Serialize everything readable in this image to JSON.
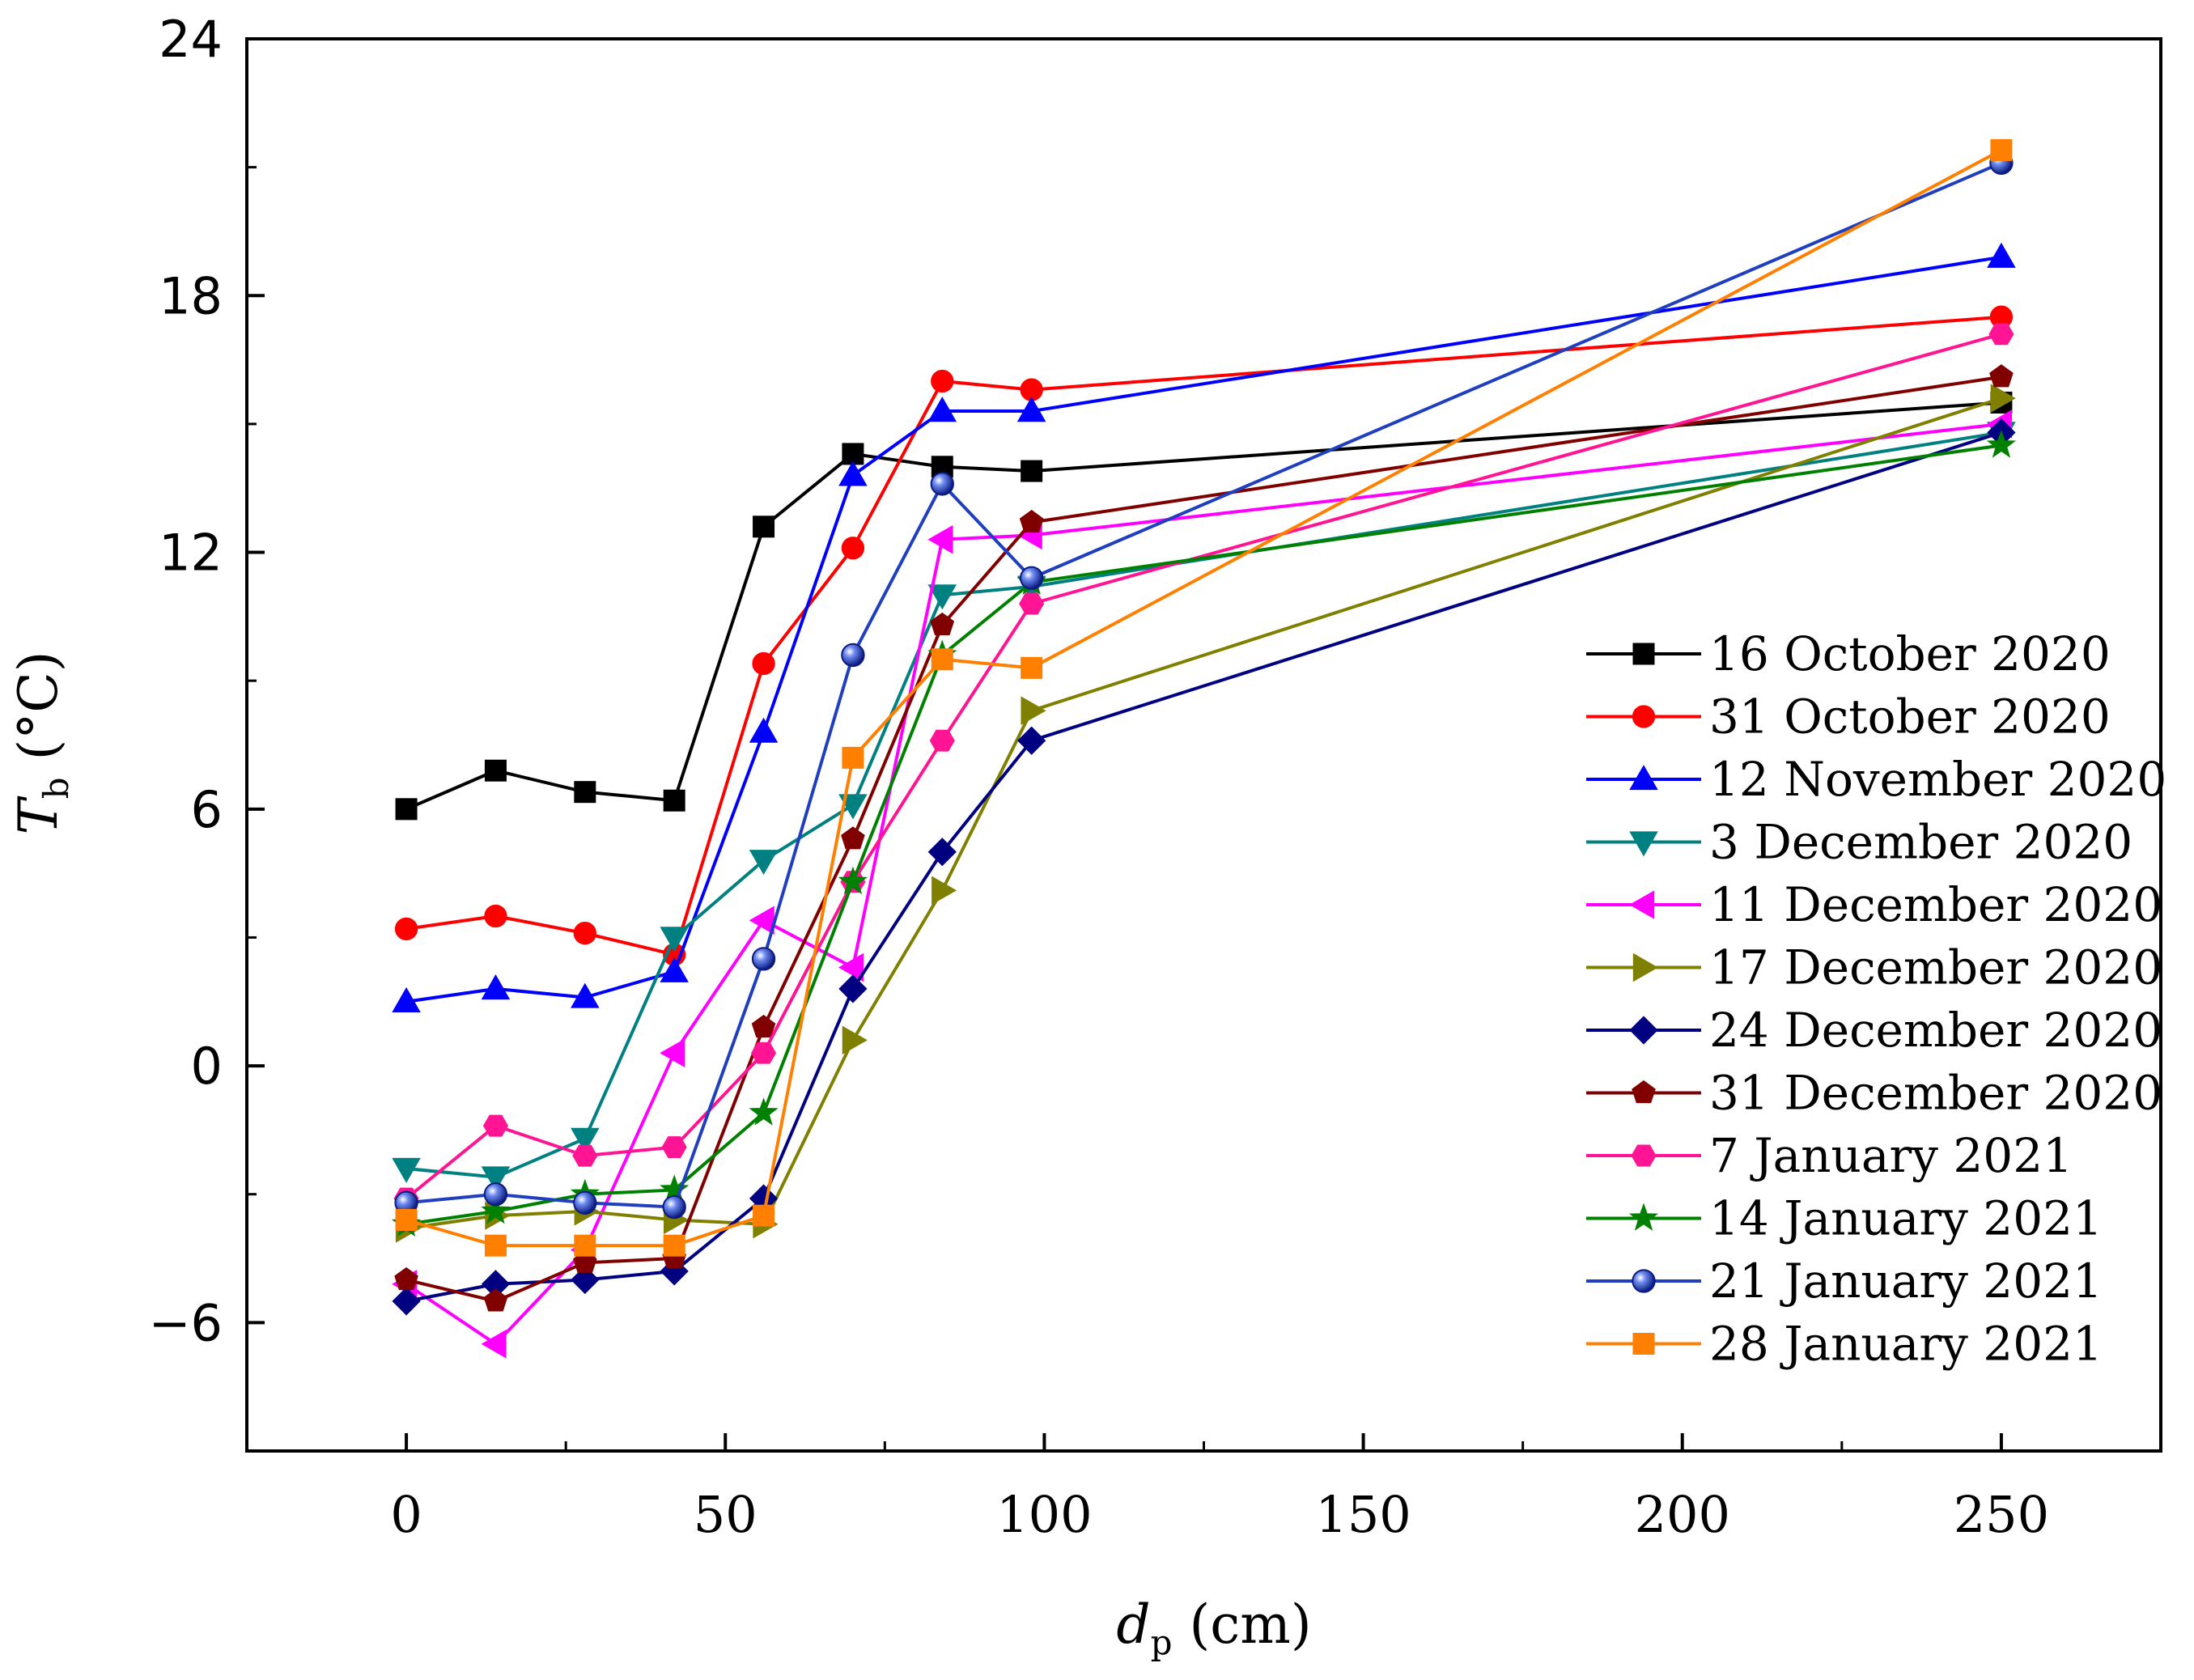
{
  "chart_data": {
    "type": "line",
    "title": "",
    "xlabel": {
      "main": "d",
      "sub": "p",
      "unit": " (cm)"
    },
    "ylabel": {
      "main": "T",
      "sub": "b",
      "unit": " (°C)"
    },
    "xlim": [
      -25,
      275
    ],
    "ylim": [
      -9,
      24
    ],
    "x_ticks": [
      0,
      50,
      100,
      150,
      200,
      250
    ],
    "y_ticks": [
      -6,
      0,
      6,
      12,
      18,
      24
    ],
    "y_tick_labels": [
      "−6",
      "0",
      "6",
      "12",
      "18",
      "24"
    ],
    "x_minor_step": 25,
    "y_minor_step": 3,
    "x": [
      0,
      14,
      28,
      42,
      56,
      70,
      84,
      98,
      250
    ],
    "legend_position": "center-right",
    "series": [
      {
        "name": "16 October 2020",
        "color": "#000000",
        "marker": "square",
        "values": [
          6.0,
          6.9,
          6.4,
          6.2,
          12.6,
          14.3,
          14.0,
          13.9,
          15.5
        ]
      },
      {
        "name": "31 October 2020",
        "color": "#ff0000",
        "marker": "circle",
        "values": [
          3.2,
          3.5,
          3.1,
          2.6,
          9.4,
          12.1,
          16.0,
          15.8,
          17.5
        ]
      },
      {
        "name": "12 November 2020",
        "color": "#0000ff",
        "marker": "triangle-up",
        "values": [
          1.5,
          1.8,
          1.6,
          2.2,
          7.8,
          13.8,
          15.3,
          15.3,
          18.9
        ]
      },
      {
        "name": "3 December 2020",
        "color": "#008080",
        "marker": "triangle-down",
        "values": [
          -2.4,
          -2.6,
          -1.7,
          3.0,
          4.8,
          6.1,
          11.0,
          11.2,
          14.8
        ]
      },
      {
        "name": "11 December 2020",
        "color": "#ff00ff",
        "marker": "triangle-left",
        "values": [
          -5.1,
          -6.5,
          -4.3,
          0.3,
          3.4,
          2.3,
          12.3,
          12.4,
          15.0
        ]
      },
      {
        "name": "17 December 2020",
        "color": "#808000",
        "marker": "triangle-right",
        "values": [
          -3.8,
          -3.5,
          -3.4,
          -3.6,
          -3.7,
          0.6,
          4.1,
          8.3,
          15.6
        ]
      },
      {
        "name": "24 December 2020",
        "color": "#000080",
        "marker": "diamond",
        "values": [
          -5.5,
          -5.1,
          -5.0,
          -4.8,
          -3.1,
          1.8,
          5.0,
          7.6,
          14.8
        ]
      },
      {
        "name": "31 December 2020",
        "color": "#800000",
        "marker": "pentagon",
        "values": [
          -5.0,
          -5.5,
          -4.6,
          -4.5,
          0.9,
          5.3,
          10.3,
          12.7,
          16.1
        ]
      },
      {
        "name": "7 January 2021",
        "color": "#ff1493",
        "marker": "hexagon",
        "values": [
          -3.1,
          -1.4,
          -2.1,
          -1.9,
          0.3,
          4.3,
          7.6,
          10.8,
          17.1
        ]
      },
      {
        "name": "14 January 2021",
        "color": "#008000",
        "marker": "star",
        "values": [
          -3.7,
          -3.4,
          -3.0,
          -2.9,
          -1.1,
          4.3,
          9.6,
          11.3,
          14.5
        ]
      },
      {
        "name": "21 January 2021",
        "color": "#1f3fbf",
        "marker": "sphere",
        "values": [
          -3.2,
          -3.0,
          -3.2,
          -3.3,
          2.5,
          9.6,
          13.6,
          11.4,
          21.1
        ]
      },
      {
        "name": "28 January 2021",
        "color": "#ff8000",
        "marker": "square",
        "values": [
          -3.6,
          -4.2,
          -4.2,
          -4.2,
          -3.5,
          7.2,
          9.5,
          9.3,
          21.4
        ]
      }
    ]
  }
}
